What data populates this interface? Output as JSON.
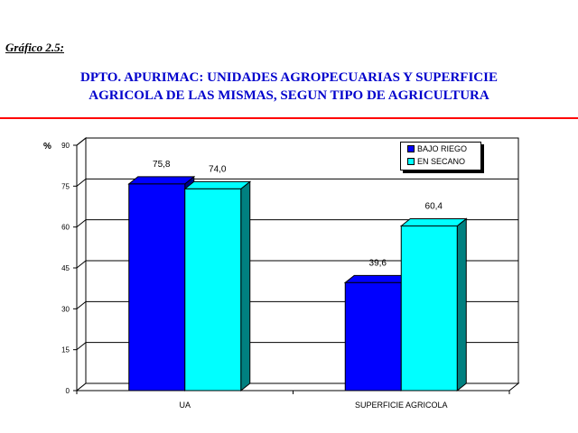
{
  "header": {
    "figure_label": "Gráfico 2.5:",
    "title_line1": "DPTO. APURIMAC: UNIDADES AGROPECUARIAS Y SUPERFICIE",
    "title_line2": "AGRICOLA DE LAS MISMAS, SEGUN TIPO DE AGRICULTURA"
  },
  "colors": {
    "title": "#0000cc",
    "rule": "#ff0000",
    "series1_front": "#0000ff",
    "series1_side": "#00008b",
    "series2_front": "#00ffff",
    "series2_side": "#008080"
  },
  "chart_data": {
    "type": "bar",
    "categories": [
      "UA",
      "SUPERFICIE AGRICOLA"
    ],
    "series": [
      {
        "name": "BAJO RIEGO",
        "values": [
          75.8,
          39.6
        ],
        "labels": [
          "75,8",
          "39,6"
        ]
      },
      {
        "name": "EN SECANO",
        "values": [
          74.0,
          60.4
        ],
        "labels": [
          "74,0",
          "60,4"
        ]
      }
    ],
    "ylabel": "%",
    "ylim": [
      0,
      90
    ],
    "yticks": [
      0,
      15,
      30,
      45,
      60,
      75,
      90
    ],
    "grid": true,
    "legend_position": "top-right"
  }
}
